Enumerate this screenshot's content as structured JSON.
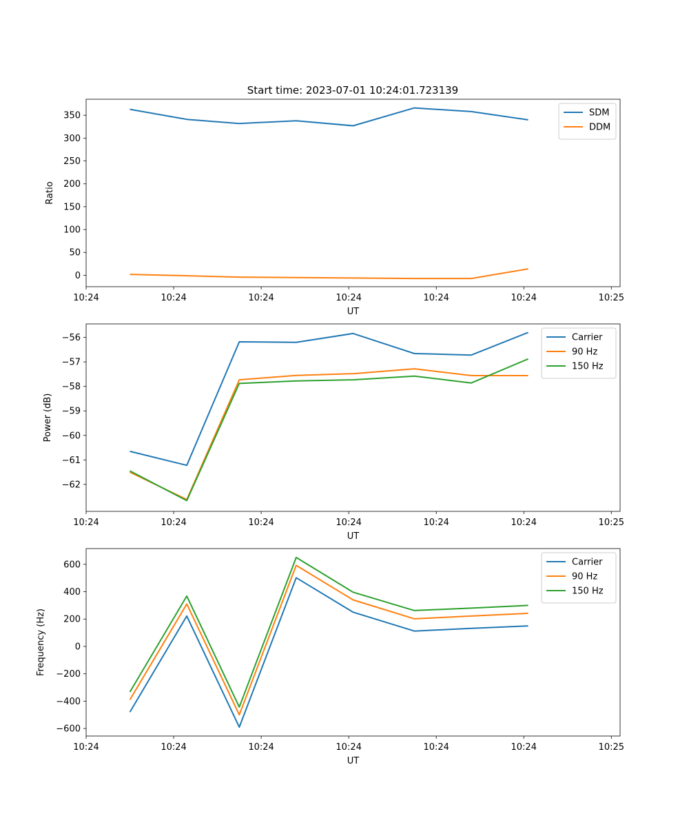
{
  "figure": {
    "title": "Start time: 2023-07-01 10:24:01.723139"
  },
  "chart_data": [
    {
      "type": "line",
      "title": "Start time: 2023-07-01 10:24:01.723139",
      "xlabel": "UT",
      "ylabel": "Ratio",
      "x": [
        0.5,
        1.15,
        1.75,
        2.4,
        3.05,
        3.75,
        4.4,
        5.05
      ],
      "xlim": [
        0,
        6.1
      ],
      "xticks": [
        0,
        1,
        2,
        3,
        4,
        5,
        6
      ],
      "xtick_labels": [
        "10:24",
        "10:24",
        "10:24",
        "10:24",
        "10:24",
        "10:24",
        "10:25"
      ],
      "ylim": [
        -25,
        385
      ],
      "yticks": [
        0,
        50,
        100,
        150,
        200,
        250,
        300,
        350
      ],
      "legend_position": "top-right",
      "series": [
        {
          "name": "SDM",
          "color": "#1f77b4",
          "values": [
            363,
            341,
            332,
            338,
            327,
            366,
            358,
            340
          ]
        },
        {
          "name": "DDM",
          "color": "#ff7f0e",
          "values": [
            2,
            -1,
            -4,
            -5,
            -6,
            -7,
            -7,
            14
          ]
        }
      ]
    },
    {
      "type": "line",
      "title": "",
      "xlabel": "UT",
      "ylabel": "Power (dB)",
      "x": [
        0.5,
        1.15,
        1.75,
        2.4,
        3.05,
        3.75,
        4.4,
        5.05
      ],
      "xlim": [
        0,
        6.1
      ],
      "xticks": [
        0,
        1,
        2,
        3,
        4,
        5,
        6
      ],
      "xtick_labels": [
        "10:24",
        "10:24",
        "10:24",
        "10:24",
        "10:24",
        "10:24",
        "10:25"
      ],
      "ylim": [
        -63.1,
        -55.45
      ],
      "yticks": [
        -62,
        -61,
        -60,
        -59,
        -58,
        -57,
        -56
      ],
      "legend_position": "top-right",
      "series": [
        {
          "name": "Carrier",
          "color": "#1f77b4",
          "values": [
            -60.65,
            -61.22,
            -56.18,
            -56.2,
            -55.84,
            -56.66,
            -56.72,
            -55.8
          ]
        },
        {
          "name": "90 Hz",
          "color": "#ff7f0e",
          "values": [
            -61.5,
            -62.62,
            -57.73,
            -57.55,
            -57.48,
            -57.28,
            -57.56,
            -57.56
          ]
        },
        {
          "name": "150 Hz",
          "color": "#2ca02c",
          "values": [
            -61.45,
            -62.66,
            -57.88,
            -57.78,
            -57.73,
            -57.58,
            -57.86,
            -56.88
          ]
        }
      ]
    },
    {
      "type": "line",
      "title": "",
      "xlabel": "UT",
      "ylabel": "Frequency (Hz)",
      "x": [
        0.5,
        1.15,
        1.75,
        2.4,
        3.05,
        3.75,
        4.4,
        5.05
      ],
      "xlim": [
        0,
        6.1
      ],
      "xticks": [
        0,
        1,
        2,
        3,
        4,
        5,
        6
      ],
      "xtick_labels": [
        "10:24",
        "10:24",
        "10:24",
        "10:24",
        "10:24",
        "10:24",
        "10:25"
      ],
      "ylim": [
        -655,
        715
      ],
      "yticks": [
        -600,
        -400,
        -200,
        0,
        200,
        400,
        600
      ],
      "legend_position": "top-right",
      "series": [
        {
          "name": "Carrier",
          "color": "#1f77b4",
          "values": [
            -480,
            222,
            -590,
            502,
            250,
            112,
            132,
            150
          ]
        },
        {
          "name": "90 Hz",
          "color": "#ff7f0e",
          "values": [
            -390,
            310,
            -500,
            592,
            340,
            202,
            222,
            242
          ]
        },
        {
          "name": "150 Hz",
          "color": "#2ca02c",
          "values": [
            -333,
            368,
            -443,
            650,
            396,
            262,
            280,
            300
          ]
        }
      ]
    }
  ]
}
